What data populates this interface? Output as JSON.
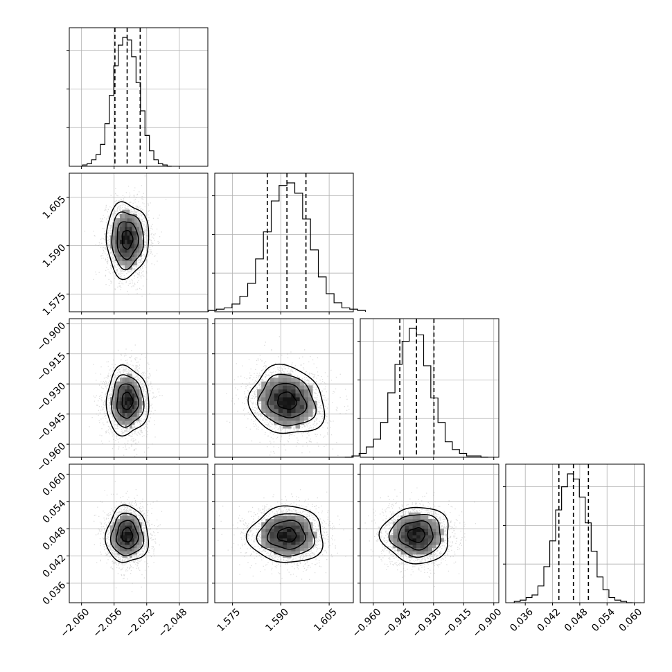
{
  "chart_data": {
    "type": "corner",
    "grid": true,
    "parameters": [
      {
        "ticks": [
          "−2.060",
          "−2.056",
          "−2.052",
          "−2.048"
        ],
        "tick_values": [
          -2.06,
          -2.056,
          -2.052,
          -2.048
        ],
        "range": [
          -2.0615,
          -2.0445
        ],
        "mean": -2.0544,
        "sd": 0.0013,
        "quantiles": [
          -2.0559,
          -2.0544,
          -2.0528
        ]
      },
      {
        "ticks": [
          "1.575",
          "1.590",
          "1.605"
        ],
        "tick_values": [
          1.575,
          1.59,
          1.605
        ],
        "range": [
          1.5695,
          1.6125
        ],
        "mean": 1.5919,
        "sd": 0.0058,
        "quantiles": [
          1.5858,
          1.5919,
          1.5978
        ]
      },
      {
        "ticks": [
          "−0.960",
          "−0.945",
          "−0.930",
          "−0.915",
          "−0.900"
        ],
        "tick_values": [
          -0.96,
          -0.945,
          -0.93,
          -0.915,
          -0.9
        ],
        "range": [
          -0.9665,
          -0.8975
        ],
        "mean": -0.9385,
        "sd": 0.0085,
        "quantiles": [
          -0.9468,
          -0.9385,
          -0.9298
        ]
      },
      {
        "ticks": [
          "0.036",
          "0.042",
          "0.048",
          "0.054",
          "0.060"
        ],
        "tick_values": [
          0.036,
          0.042,
          0.048,
          0.054,
          0.06
        ],
        "range": [
          0.0317,
          0.0622
        ],
        "mean": 0.0466,
        "sd": 0.0031,
        "quantiles": [
          0.0434,
          0.0466,
          0.0499
        ]
      }
    ],
    "histogram_heights": [
      [
        0.01,
        0.02,
        0.05,
        0.09,
        0.17,
        0.33,
        0.55,
        0.78,
        0.94,
        1.0,
        0.98,
        0.85,
        0.65,
        0.43,
        0.24,
        0.12,
        0.05,
        0.02,
        0.01,
        0.0
      ],
      [
        0.01,
        0.02,
        0.03,
        0.06,
        0.12,
        0.22,
        0.41,
        0.62,
        0.86,
        0.98,
        1.0,
        0.92,
        0.72,
        0.48,
        0.27,
        0.14,
        0.07,
        0.03,
        0.02,
        0.01
      ],
      [
        0.0,
        0.01,
        0.03,
        0.08,
        0.14,
        0.27,
        0.5,
        0.72,
        0.9,
        1.0,
        0.95,
        0.71,
        0.46,
        0.27,
        0.12,
        0.06,
        0.03,
        0.01,
        0.01,
        0.0
      ],
      [
        0.01,
        0.02,
        0.04,
        0.06,
        0.13,
        0.28,
        0.48,
        0.72,
        0.9,
        1.0,
        0.96,
        0.82,
        0.62,
        0.4,
        0.2,
        0.1,
        0.04,
        0.02,
        0.01,
        0.0
      ]
    ]
  }
}
